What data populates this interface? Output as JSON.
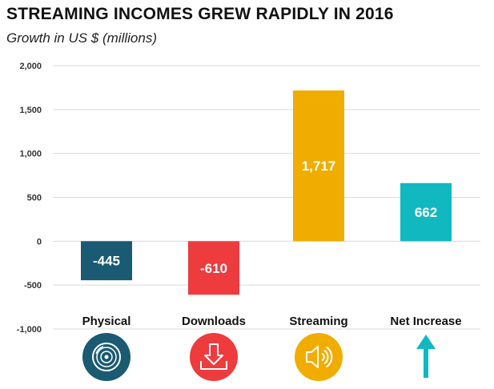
{
  "chart_data": {
    "type": "bar",
    "title": "STREAMING INCOMES GREW RAPIDLY IN 2016",
    "subtitle": "Growth in US $ (millions)",
    "xlabel": "",
    "ylabel": "",
    "ylim": [
      -1000,
      2000
    ],
    "yticks": [
      2000,
      1500,
      1000,
      500,
      0,
      -500,
      -1000
    ],
    "ytick_labels": [
      "2,000",
      "1,500",
      "1,000",
      "500",
      "0",
      "-500",
      "-1,000"
    ],
    "grid": true,
    "categories": [
      "Physical",
      "Downloads",
      "Streaming",
      "Net Increase"
    ],
    "values": [
      -445,
      -610,
      1717,
      662
    ],
    "data_labels": [
      "-445",
      "-610",
      "1,717",
      "662"
    ],
    "colors": [
      "#1a5a72",
      "#ee3b3e",
      "#f0ad00",
      "#12b8c0"
    ],
    "icons": [
      "vinyl-record-icon",
      "download-arrow-icon",
      "speaker-icon",
      "up-arrow-icon"
    ]
  }
}
